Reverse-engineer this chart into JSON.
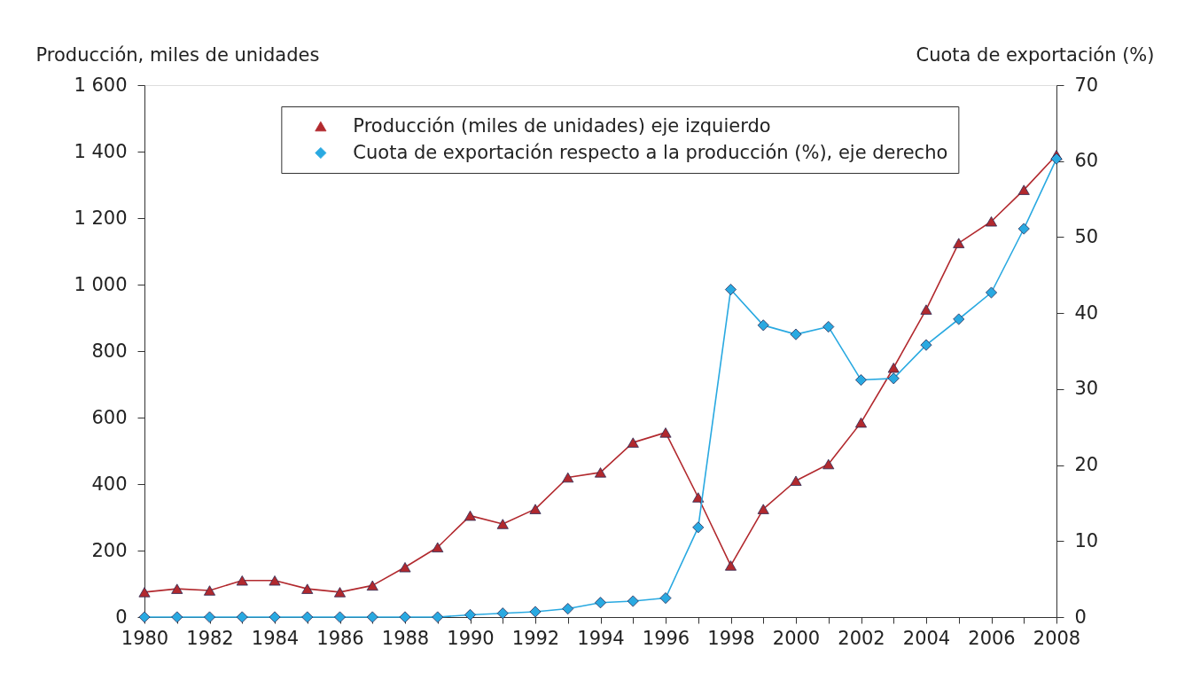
{
  "chart_data": {
    "type": "line",
    "x": [
      1980,
      1981,
      1982,
      1983,
      1984,
      1985,
      1986,
      1987,
      1988,
      1989,
      1990,
      1991,
      1992,
      1993,
      1994,
      1995,
      1996,
      1997,
      1998,
      1999,
      2000,
      2001,
      2002,
      2003,
      2004,
      2005,
      2006,
      2007,
      2008
    ],
    "xlim": [
      1980,
      2008
    ],
    "xticks": [
      1980,
      {
        "value": 1981,
        "label": null
      },
      1982,
      {
        "value": 1983,
        "label": null
      },
      1984,
      {
        "value": 1985,
        "label": null
      },
      1986,
      {
        "value": 1987,
        "label": null
      },
      1988,
      {
        "value": 1989,
        "label": null
      },
      1990,
      {
        "value": 1991,
        "label": null
      },
      1992,
      {
        "value": 1993,
        "label": null
      },
      1994,
      {
        "value": 1995,
        "label": null
      },
      1996,
      {
        "value": 1997,
        "label": null
      },
      1998,
      {
        "value": 1999,
        "label": null
      },
      2000,
      {
        "value": 2001,
        "label": null
      },
      2002,
      {
        "value": 2003,
        "label": null
      },
      2004,
      {
        "value": 2005,
        "label": null
      },
      2006,
      {
        "value": 2007,
        "label": null
      },
      2008
    ],
    "ylim": [
      0,
      1600
    ],
    "yticks": [
      0,
      200,
      400,
      600,
      800,
      {
        "value": 1000,
        "label": "1 000"
      },
      {
        "value": 1200,
        "label": "1 200"
      },
      {
        "value": 1400,
        "label": "1 400"
      },
      {
        "value": 1600,
        "label": "1 600"
      }
    ],
    "y2lim": [
      0,
      70
    ],
    "y2ticks": [
      0,
      10,
      20,
      30,
      40,
      50,
      60,
      70
    ],
    "ylabel": "Producción, miles de unidades",
    "y2label": "Cuota de exportación (%)",
    "series": [
      {
        "name": "Producción (miles de unidades) eje izquierdo",
        "color": "#b2292e",
        "marker": "triangle",
        "values": [
          75,
          85,
          80,
          110,
          110,
          85,
          75,
          95,
          150,
          210,
          305,
          280,
          325,
          420,
          435,
          525,
          555,
          360,
          155,
          325,
          410,
          460,
          585,
          750,
          925,
          1125,
          1190,
          1285,
          1390
        ]
      },
      {
        "name": "Cuota de exportación respecto a la producción (%), eje derecho",
        "color": "#29a9e1",
        "marker": "diamond",
        "axis": "y2",
        "values": [
          0,
          0,
          0,
          0,
          0,
          0,
          0,
          0,
          0,
          0,
          0.3,
          0.5,
          0.7,
          1.1,
          1.9,
          2.1,
          2.5,
          11.8,
          43.1,
          38.4,
          37.2,
          38.2,
          31.2,
          31.4,
          35.8,
          39.2,
          42.7,
          51.1,
          60.3
        ]
      }
    ],
    "legend": "top",
    "grid": false,
    "line_style": "solid"
  }
}
